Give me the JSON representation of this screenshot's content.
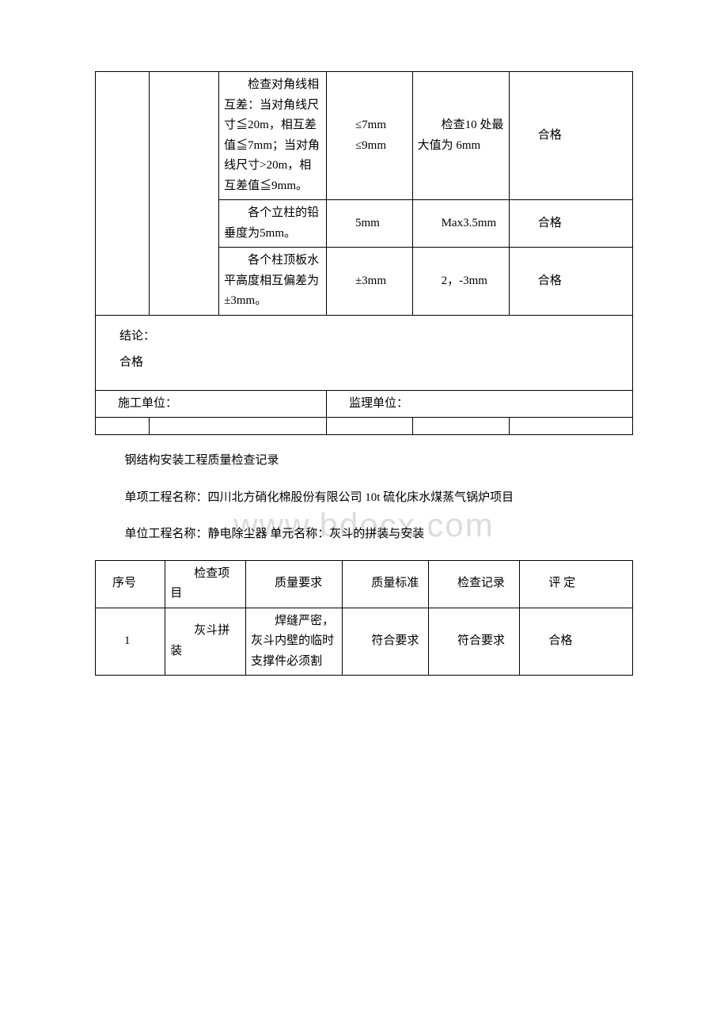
{
  "table1": {
    "col_widths": [
      "10%",
      "13%",
      "20%",
      "16%",
      "18%",
      "23%"
    ],
    "rows": [
      {
        "cells": [
          {
            "text": "",
            "rowspan": 3
          },
          {
            "text": "",
            "rowspan": 3
          },
          {
            "text": "　　检查对角线相互差：当对角线尺寸≦20m，相互差值≦7mm；当对角线尺寸>20m，相互差值≦9mm。"
          },
          {
            "text": "　　≤7mm\n　　≤9mm"
          },
          {
            "text": "　　检查10 处最大值为 6mm"
          },
          {
            "text": "　　合格"
          }
        ]
      },
      {
        "cells": [
          {
            "text": "　　各个立柱的铅垂度为5mm。"
          },
          {
            "text": "　　5mm"
          },
          {
            "text": "　　Max3.5mm"
          },
          {
            "text": "　　合格"
          }
        ]
      },
      {
        "cells": [
          {
            "text": "　　各个柱顶板水平高度相互偏差为±3mm。"
          },
          {
            "text": "　　±3mm"
          },
          {
            "text": "　　2，-3mm"
          },
          {
            "text": "　　合格"
          }
        ]
      }
    ],
    "conclusion_label": "结论：",
    "conclusion_value": "合格",
    "construction_unit_label": "施工单位：",
    "supervision_unit_label": "监理单位：",
    "footer_cols": 5
  },
  "section_title": "钢结构安装工程质量检查记录",
  "project_line1": "单项工程名称：四川北方硝化棉股份有限公司 10t 硫化床水煤蒸气锅炉项目",
  "project_line2": "单位工程名称：静电除尘器 单元名称：灰斗的拼装与安装",
  "table2": {
    "col_widths": [
      "13%",
      "15%",
      "18%",
      "16%",
      "17%",
      "21%"
    ],
    "headers": [
      "　序号",
      "　　检查项目",
      "　　质量要求",
      "　　质量标准",
      "　　检查记录",
      "　　评 定"
    ],
    "row1": [
      "　　1",
      "　　灰斗拼装",
      "　　焊缝严密，灰斗内壁的临时支撑件必须割",
      "　　符合要求",
      "　　符合要求",
      "　　合格"
    ]
  },
  "watermark_text": "www.bdocx.com"
}
